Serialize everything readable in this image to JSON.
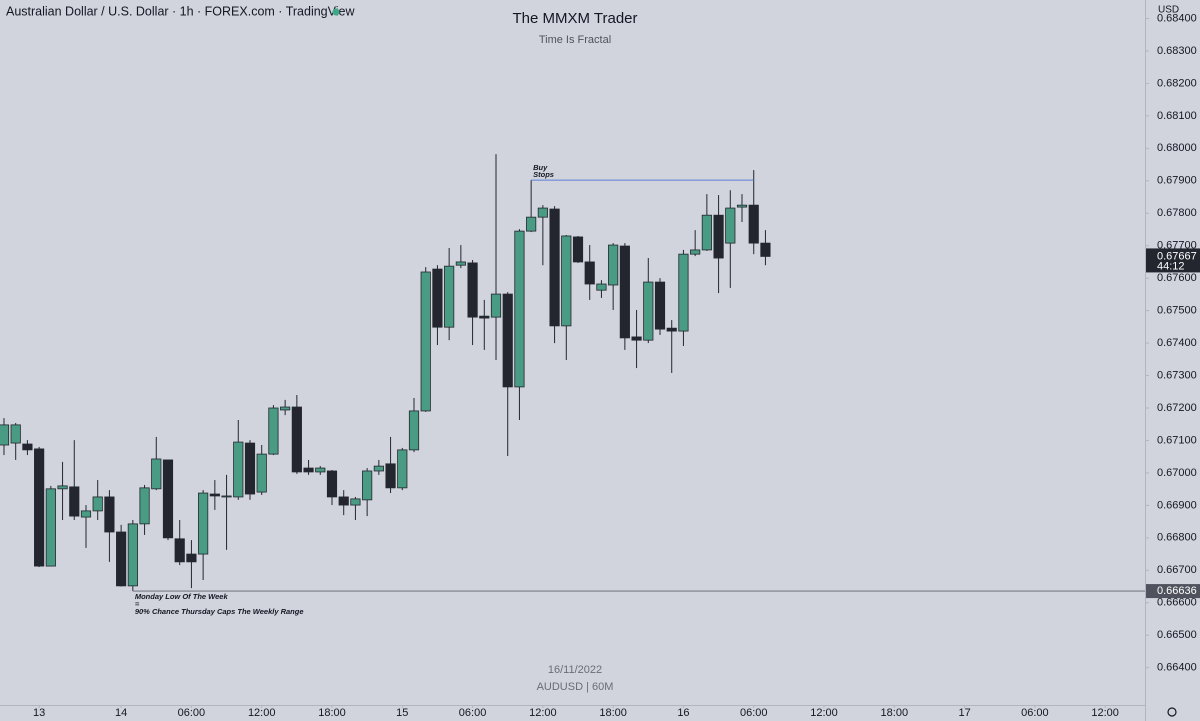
{
  "chart_data": {
    "type": "candlestick",
    "header": "Australian Dollar / U.S. Dollar · 1h · FOREX.com · TradingView",
    "title": "The MMXM Trader",
    "subtitle": "Time Is Fractal",
    "watermark_date": "16/11/2022",
    "watermark_symbol": "AUDUSD | 60M",
    "currency": "USD",
    "up_color": "#4a9b83",
    "down_color": "#23262f",
    "open": [
      0.67086,
      0.67092,
      0.67089,
      0.67074,
      0.66713,
      0.66951,
      0.66957,
      0.66864,
      0.66883,
      0.66926,
      0.66818,
      0.66652,
      0.66843,
      0.66951,
      0.6704,
      0.66797,
      0.6675,
      0.6675,
      0.66935,
      0.66926,
      0.66926,
      0.67092,
      0.66941,
      0.67058,
      0.67194,
      0.67203,
      0.67015,
      0.67003,
      0.67006,
      0.66926,
      0.66901,
      0.66917,
      0.67006,
      0.67028,
      0.66954,
      0.67071,
      0.67191,
      0.67628,
      0.67449,
      0.6764,
      0.67647,
      0.67483,
      0.6748,
      0.67551,
      0.67265,
      0.67745,
      0.67788,
      0.67813,
      0.67453,
      0.67727,
      0.6765,
      0.67563,
      0.67579,
      0.67699,
      0.67419,
      0.67409,
      0.67588,
      0.67446,
      0.67437,
      0.67674,
      0.67687,
      0.67794,
      0.67708,
      0.67819,
      0.67825,
      0.67708
    ],
    "high": [
      0.67169,
      0.67154,
      0.67101,
      0.6708,
      0.6696,
      0.67034,
      0.67101,
      0.66901,
      0.66978,
      0.66947,
      0.6684,
      0.66855,
      0.66963,
      0.67111,
      0.6704,
      0.66855,
      0.66793,
      0.66947,
      0.66978,
      0.66994,
      0.67163,
      0.67101,
      0.67086,
      0.67209,
      0.67225,
      0.6724,
      0.6704,
      0.67021,
      0.67009,
      0.66947,
      0.66926,
      0.67015,
      0.6704,
      0.67111,
      0.67077,
      0.67231,
      0.67634,
      0.6764,
      0.67693,
      0.67702,
      0.67656,
      0.67533,
      0.67982,
      0.67557,
      0.67751,
      0.67902,
      0.67825,
      0.67822,
      0.67733,
      0.6773,
      0.67702,
      0.67594,
      0.67708,
      0.67708,
      0.67502,
      0.67662,
      0.676,
      0.67471,
      0.67687,
      0.67748,
      0.67859,
      0.67856,
      0.67871,
      0.67859,
      0.67933,
      0.67748
    ],
    "low": [
      0.67055,
      0.6704,
      0.67055,
      0.6671,
      0.66713,
      0.66855,
      0.66855,
      0.66769,
      0.66855,
      0.66726,
      0.6665,
      0.66636,
      0.66809,
      0.66947,
      0.66793,
      0.66716,
      0.66645,
      0.6667,
      0.66886,
      0.66763,
      0.66917,
      0.66917,
      0.66932,
      0.67055,
      0.67178,
      0.66997,
      0.66994,
      0.66994,
      0.66901,
      0.6687,
      0.66855,
      0.66867,
      0.66994,
      0.66938,
      0.66947,
      0.67064,
      0.67188,
      0.67394,
      0.67409,
      0.67631,
      0.67394,
      0.67379,
      0.67348,
      0.67052,
      0.67163,
      0.67742,
      0.6764,
      0.674,
      0.67348,
      0.67647,
      0.67533,
      0.67539,
      0.67502,
      0.67379,
      0.67323,
      0.674,
      0.67425,
      0.67308,
      0.67391,
      0.67668,
      0.67684,
      0.67554,
      0.6757,
      0.67773,
      0.67674,
      0.6764
    ],
    "close": [
      0.67148,
      0.67148,
      0.67071,
      0.66713,
      0.66951,
      0.6696,
      0.66867,
      0.66883,
      0.66926,
      0.66818,
      0.66652,
      0.66843,
      0.66954,
      0.67043,
      0.668,
      0.66726,
      0.66726,
      0.66938,
      0.66929,
      0.66929,
      0.67095,
      0.66935,
      0.67058,
      0.672,
      0.67203,
      0.67003,
      0.67003,
      0.67015,
      0.66926,
      0.66901,
      0.6692,
      0.67006,
      0.67021,
      0.66954,
      0.67071,
      0.67191,
      0.67619,
      0.67449,
      0.67637,
      0.6765,
      0.6748,
      0.67477,
      0.67551,
      0.67265,
      0.67745,
      0.67788,
      0.67816,
      0.67453,
      0.6773,
      0.6765,
      0.67582,
      0.67582,
      0.67702,
      0.67416,
      0.67409,
      0.67588,
      0.67443,
      0.67437,
      0.67674,
      0.67687,
      0.67794,
      0.67662,
      0.67816,
      0.67825,
      0.67708,
      0.67667
    ],
    "xlim": [
      -0.34,
      97.4
    ],
    "xticks": [
      {
        "value": 3,
        "label": "13"
      },
      {
        "value": 10,
        "label": "14"
      },
      {
        "value": 16,
        "label": "06:00"
      },
      {
        "value": 22,
        "label": "12:00"
      },
      {
        "value": 28,
        "label": "18:00"
      },
      {
        "value": 34,
        "label": "15"
      },
      {
        "value": 40,
        "label": "06:00"
      },
      {
        "value": 46,
        "label": "12:00"
      },
      {
        "value": 52,
        "label": "18:00"
      },
      {
        "value": 58,
        "label": "16"
      },
      {
        "value": 64,
        "label": "06:00"
      },
      {
        "value": 70,
        "label": "12:00"
      },
      {
        "value": 76,
        "label": "18:00"
      },
      {
        "value": 82,
        "label": "17"
      },
      {
        "value": 88,
        "label": "06:00"
      },
      {
        "value": 94,
        "label": "12:00"
      }
    ],
    "ylim": [
      0.66285,
      0.68457
    ],
    "yticks": [
      {
        "value": 0.684,
        "label": "0.68400"
      },
      {
        "value": 0.683,
        "label": "0.68300"
      },
      {
        "value": 0.682,
        "label": "0.68200"
      },
      {
        "value": 0.681,
        "label": "0.68100"
      },
      {
        "value": 0.68,
        "label": "0.68000"
      },
      {
        "value": 0.679,
        "label": "0.67900"
      },
      {
        "value": 0.678,
        "label": "0.67800"
      },
      {
        "value": 0.677,
        "label": "0.67700"
      },
      {
        "value": 0.676,
        "label": "0.67600"
      },
      {
        "value": 0.675,
        "label": "0.67500"
      },
      {
        "value": 0.674,
        "label": "0.67400"
      },
      {
        "value": 0.673,
        "label": "0.67300"
      },
      {
        "value": 0.672,
        "label": "0.67200"
      },
      {
        "value": 0.671,
        "label": "0.67100"
      },
      {
        "value": 0.67,
        "label": "0.67000"
      },
      {
        "value": 0.669,
        "label": "0.66900"
      },
      {
        "value": 0.668,
        "label": "0.66800"
      },
      {
        "value": 0.667,
        "label": "0.66700"
      },
      {
        "value": 0.666,
        "label": "0.66600"
      },
      {
        "value": 0.665,
        "label": "0.66500"
      },
      {
        "value": 0.664,
        "label": "0.66400"
      }
    ],
    "buy_stops": {
      "value": 0.67902,
      "from": 45,
      "to": 64,
      "color": "#5b7fd6",
      "labels": [
        "Buy",
        "Stops"
      ]
    },
    "monday_low": {
      "value": 0.66636,
      "from": 11,
      "color": "#787b86",
      "notes": [
        "Monday Low Of The Week",
        "=",
        "90% Chance Thursday Caps The Weekly Range"
      ]
    },
    "last_price": {
      "value": 0.67667,
      "countdown": "44:12"
    }
  }
}
